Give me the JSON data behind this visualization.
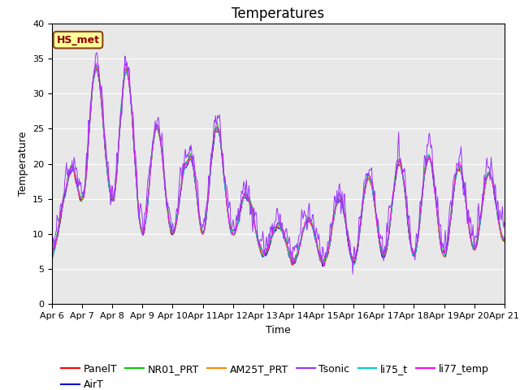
{
  "title": "Temperatures",
  "xlabel": "Time",
  "ylabel": "Temperature",
  "ylim": [
    0,
    40
  ],
  "x_tick_labels": [
    "Apr 6",
    "Apr 7",
    "Apr 8",
    "Apr 9",
    "Apr 10",
    "Apr 11",
    "Apr 12",
    "Apr 13",
    "Apr 14",
    "Apr 15",
    "Apr 16",
    "Apr 17",
    "Apr 18",
    "Apr 19",
    "Apr 20",
    "Apr 21"
  ],
  "annotation_text": "HS_met",
  "annotation_bbox_facecolor": "#ffff99",
  "annotation_bbox_edgecolor": "#8B4513",
  "annotation_text_color": "#8B0000",
  "series_colors": {
    "PanelT": "#ff0000",
    "AirT": "#0000cc",
    "NR01_PRT": "#00cc00",
    "AM25T_PRT": "#ff8800",
    "Tsonic": "#9933ff",
    "li75_t": "#00cccc",
    "li77_temp": "#ff00ff"
  },
  "background_color": "#e8e8e8",
  "figure_facecolor": "#ffffff",
  "grid_color": "#ffffff",
  "title_fontsize": 12,
  "label_fontsize": 9,
  "tick_fontsize": 8,
  "legend_fontsize": 9
}
